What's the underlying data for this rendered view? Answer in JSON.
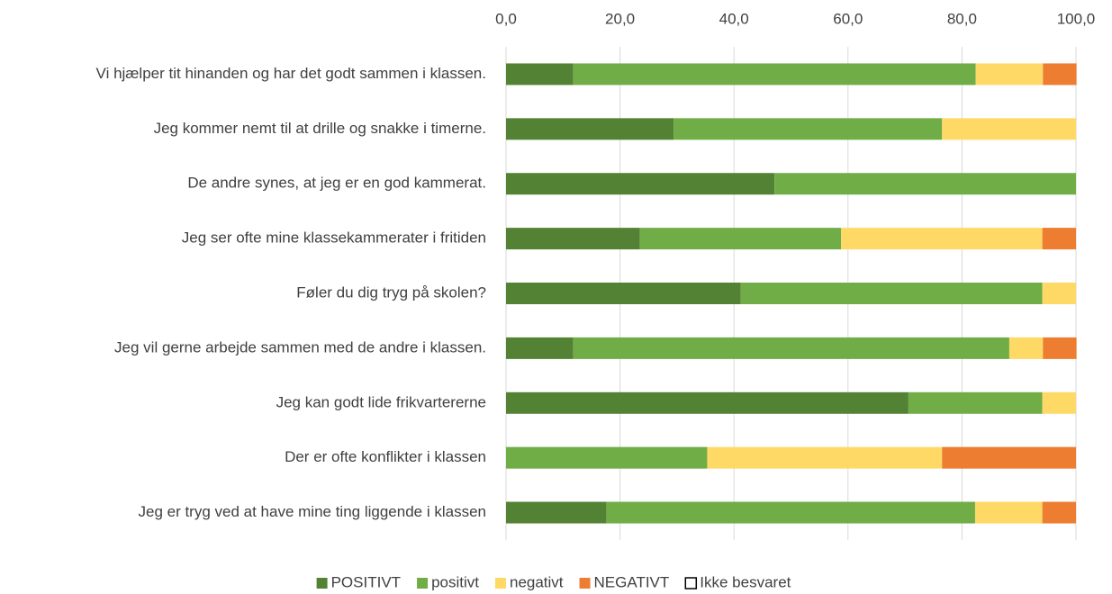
{
  "chart_data": {
    "type": "stacked_bar_horizontal",
    "categories": [
      "Vi hjælper tit hinanden og har det godt sammen i klassen.",
      "Jeg kommer nemt til at drille og snakke i timerne.",
      "De andre synes, at jeg er en god kammerat.",
      "Jeg ser ofte mine klassekammerater i fritiden",
      "Føler du dig tryg på skolen?",
      "Jeg vil gerne arbejde sammen med de andre i klassen.",
      "Jeg kan godt lide frikvartererne",
      "Der er ofte konflikter i klassen",
      "Jeg er tryg ved at have mine ting liggende i klassen"
    ],
    "series": [
      {
        "name": "POSITIVT",
        "color": "#548235",
        "values": [
          11.8,
          29.4,
          47.1,
          23.5,
          41.2,
          11.8,
          70.6,
          0,
          17.6
        ]
      },
      {
        "name": "positivt",
        "color": "#70ad47",
        "values": [
          70.6,
          47.1,
          52.9,
          35.3,
          52.9,
          76.5,
          23.5,
          35.3,
          64.7
        ]
      },
      {
        "name": "negativt",
        "color": "#ffd966",
        "values": [
          11.8,
          23.5,
          0,
          35.3,
          5.9,
          5.9,
          5.9,
          41.2,
          11.8
        ]
      },
      {
        "name": "NEGATIVT",
        "color": "#ed7d31",
        "values": [
          5.9,
          0,
          0,
          5.9,
          0,
          5.9,
          0,
          23.5,
          5.9
        ]
      },
      {
        "name": "Ikke besvaret",
        "color": "#ffffff",
        "values": [
          0,
          0,
          0,
          0,
          0,
          0,
          0,
          0,
          0
        ]
      }
    ],
    "xlim": [
      0,
      100
    ],
    "xticks": [
      {
        "value": 0,
        "label": "0,0"
      },
      {
        "value": 20,
        "label": "20,0"
      },
      {
        "value": 40,
        "label": "40,0"
      },
      {
        "value": 60,
        "label": "60,0"
      },
      {
        "value": 80,
        "label": "80,0"
      },
      {
        "value": 100,
        "label": "100,0"
      }
    ],
    "grid": true,
    "legend": "bottom"
  }
}
